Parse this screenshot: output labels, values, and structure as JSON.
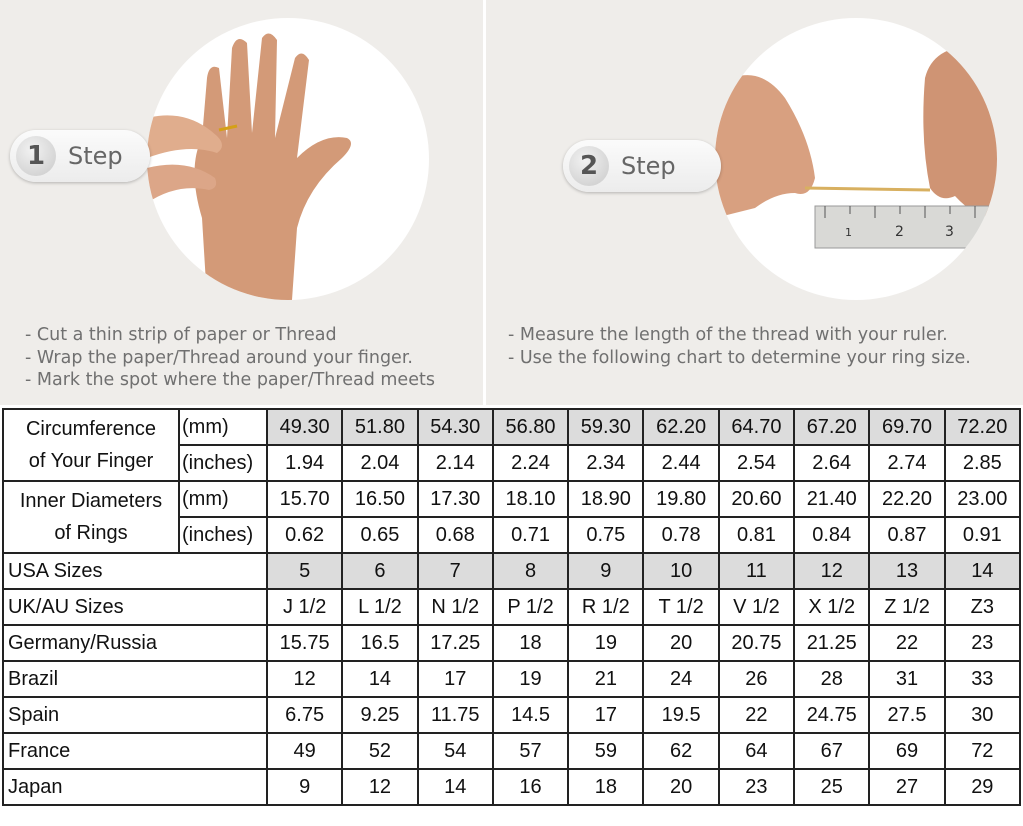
{
  "steps": [
    {
      "number": "1",
      "label": "Step",
      "instructions": [
        "- Cut a thin strip of paper or Thread",
        "- Wrap the paper/Thread around your finger.",
        "- Mark the spot where the paper/Thread meets"
      ]
    },
    {
      "number": "2",
      "label": "Step",
      "instructions": [
        "- Measure the length of the thread with your ruler.",
        "- Use the following chart to determine your ring size."
      ]
    }
  ],
  "ruler_marks": [
    "1",
    "2",
    "3"
  ],
  "table": {
    "circumference": {
      "label": [
        "Circumference",
        "of Your Finger"
      ],
      "mm": {
        "unit": "(mm)",
        "values": [
          "49.30",
          "51.80",
          "54.30",
          "56.80",
          "59.30",
          "62.20",
          "64.70",
          "67.20",
          "69.70",
          "72.20"
        ]
      },
      "inches": {
        "unit": "(inches)",
        "values": [
          "1.94",
          "2.04",
          "2.14",
          "2.24",
          "2.34",
          "2.44",
          "2.54",
          "2.64",
          "2.74",
          "2.85"
        ]
      }
    },
    "diameter": {
      "label": [
        "Inner Diameters",
        "of Rings"
      ],
      "mm": {
        "unit": "(mm)",
        "values": [
          "15.70",
          "16.50",
          "17.30",
          "18.10",
          "18.90",
          "19.80",
          "20.60",
          "21.40",
          "22.20",
          "23.00"
        ]
      },
      "inches": {
        "unit": "(inches)",
        "values": [
          "0.62",
          "0.65",
          "0.68",
          "0.71",
          "0.75",
          "0.78",
          "0.81",
          "0.84",
          "0.87",
          "0.91"
        ]
      }
    },
    "rows": [
      {
        "label": "USA Sizes",
        "values": [
          "5",
          "6",
          "7",
          "8",
          "9",
          "10",
          "11",
          "12",
          "13",
          "14"
        ]
      },
      {
        "label": "UK/AU Sizes",
        "values": [
          "J 1/2",
          "L 1/2",
          "N 1/2",
          "P 1/2",
          "R 1/2",
          "T 1/2",
          "V 1/2",
          "X 1/2",
          "Z 1/2",
          "Z3"
        ]
      },
      {
        "label": "Germany/Russia",
        "values": [
          "15.75",
          "16.5",
          "17.25",
          "18",
          "19",
          "20",
          "20.75",
          "21.25",
          "22",
          "23"
        ]
      },
      {
        "label": "Brazil",
        "values": [
          "12",
          "14",
          "17",
          "19",
          "21",
          "24",
          "26",
          "28",
          "31",
          "33"
        ]
      },
      {
        "label": "Spain",
        "values": [
          "6.75",
          "9.25",
          "11.75",
          "14.5",
          "17",
          "19.5",
          "22",
          "24.75",
          "27.5",
          "30"
        ]
      },
      {
        "label": "France",
        "values": [
          "49",
          "52",
          "54",
          "57",
          "59",
          "62",
          "64",
          "67",
          "69",
          "72"
        ]
      },
      {
        "label": "Japan",
        "values": [
          "9",
          "12",
          "14",
          "16",
          "18",
          "20",
          "23",
          "25",
          "27",
          "29"
        ]
      }
    ]
  },
  "colors": {
    "panel_bg": "#efedea",
    "highlight_row": "#dcdcdc",
    "skin": "#d9a07f"
  }
}
